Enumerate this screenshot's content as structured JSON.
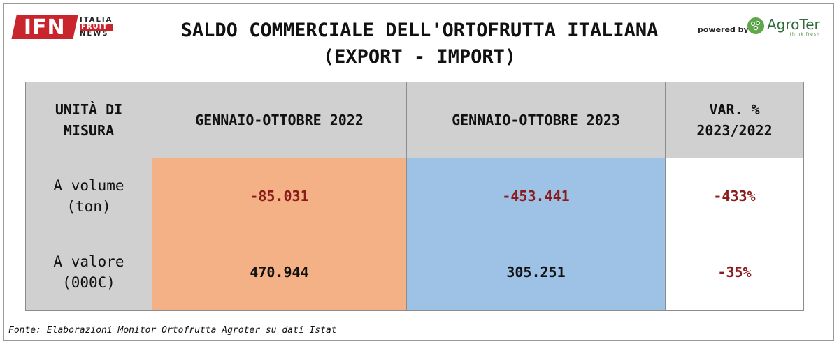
{
  "header": {
    "title_line1": "SALDO COMMERCIALE DELL'ORTOFRUTTA ITALIANA",
    "title_line2": "(EXPORT - IMPORT)",
    "logo_left": {
      "mark": "IFN",
      "line1": "ITALIA",
      "line2": "FRUIT",
      "line3": "NEWS"
    },
    "powered_by": "powered by",
    "logo_right": {
      "name": "AgroTer",
      "tagline": "think fresh"
    }
  },
  "chart_data": {
    "type": "table",
    "title": "SALDO COMMERCIALE DELL'ORTOFRUTTA ITALIANA (EXPORT - IMPORT)",
    "columns": [
      "UNITÀ DI MISURA",
      "GENNAIO-OTTOBRE 2022",
      "GENNAIO-OTTOBRE 2023",
      "VAR. % 2023/2022"
    ],
    "header": {
      "unit_l1": "UNITÀ DI",
      "unit_l2": "MISURA",
      "col2022": "GENNAIO-OTTOBRE 2022",
      "col2023": "GENNAIO-OTTOBRE 2023",
      "var_l1": "VAR. %",
      "var_l2": "2023/2022"
    },
    "rows": [
      {
        "label_l1": "A volume",
        "label_l2": "(ton)",
        "v2022": "-85.031",
        "v2023": "-453.441",
        "var": "-433%"
      },
      {
        "label_l1": "A valore",
        "label_l2": "(000€)",
        "v2022": "470.944",
        "v2023": "305.251",
        "var": "-35%"
      }
    ]
  },
  "colors": {
    "col2022": "#f4b185",
    "col2023": "#9dc2e6",
    "header": "#d0d0d0",
    "negative": "#8b1a1a"
  },
  "source": "Fonte: Elaborazioni Monitor Ortofrutta Agroter su dati Istat"
}
